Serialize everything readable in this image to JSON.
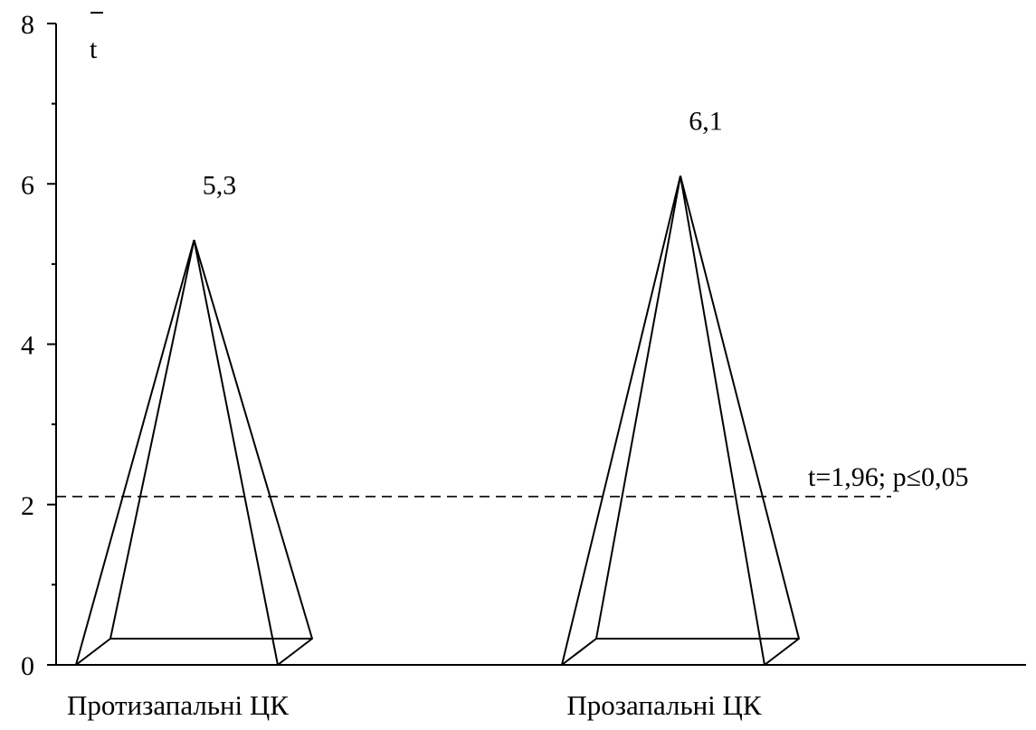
{
  "chart_data": {
    "type": "bar",
    "shape": "pyramid",
    "categories": [
      "Протизапальні ЦК",
      "Прозапальні ЦК"
    ],
    "values": [
      5.3,
      6.1
    ],
    "value_labels": [
      "5,3",
      "6,1"
    ],
    "ylabel": "t",
    "ylim": [
      0,
      8
    ],
    "yticks": [
      0,
      2,
      4,
      6,
      8
    ],
    "ytick_labels": [
      "0",
      "2",
      "4",
      "6",
      "8"
    ],
    "minor_tick_step": 1,
    "reference_line": {
      "value": 2.1,
      "label": "t=1,96; p≤0,05",
      "style": "dashed"
    },
    "grid": false,
    "legend": "none"
  }
}
